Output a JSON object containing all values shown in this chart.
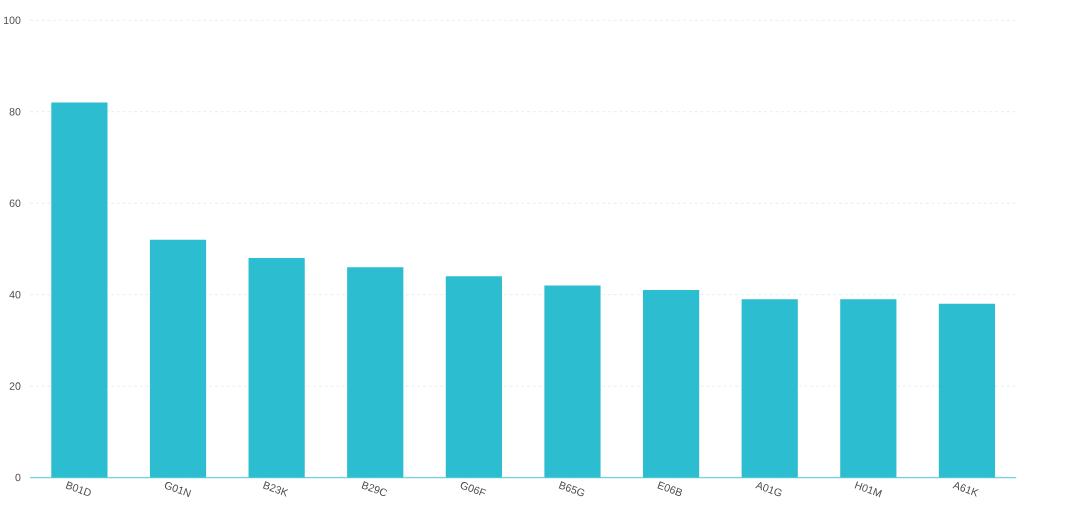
{
  "chart_data": {
    "type": "bar",
    "categories": [
      "B01D",
      "G01N",
      "B23K",
      "B29C",
      "G06F",
      "B65G",
      "E06B",
      "A01G",
      "H01M",
      "A61K"
    ],
    "values": [
      82,
      52,
      48,
      46,
      44,
      42,
      41,
      39,
      39,
      38
    ],
    "color": "#2dbdd1",
    "ylim": [
      0,
      100
    ],
    "yticks": [
      0,
      20,
      40,
      60,
      80,
      100
    ],
    "grid": "y"
  }
}
